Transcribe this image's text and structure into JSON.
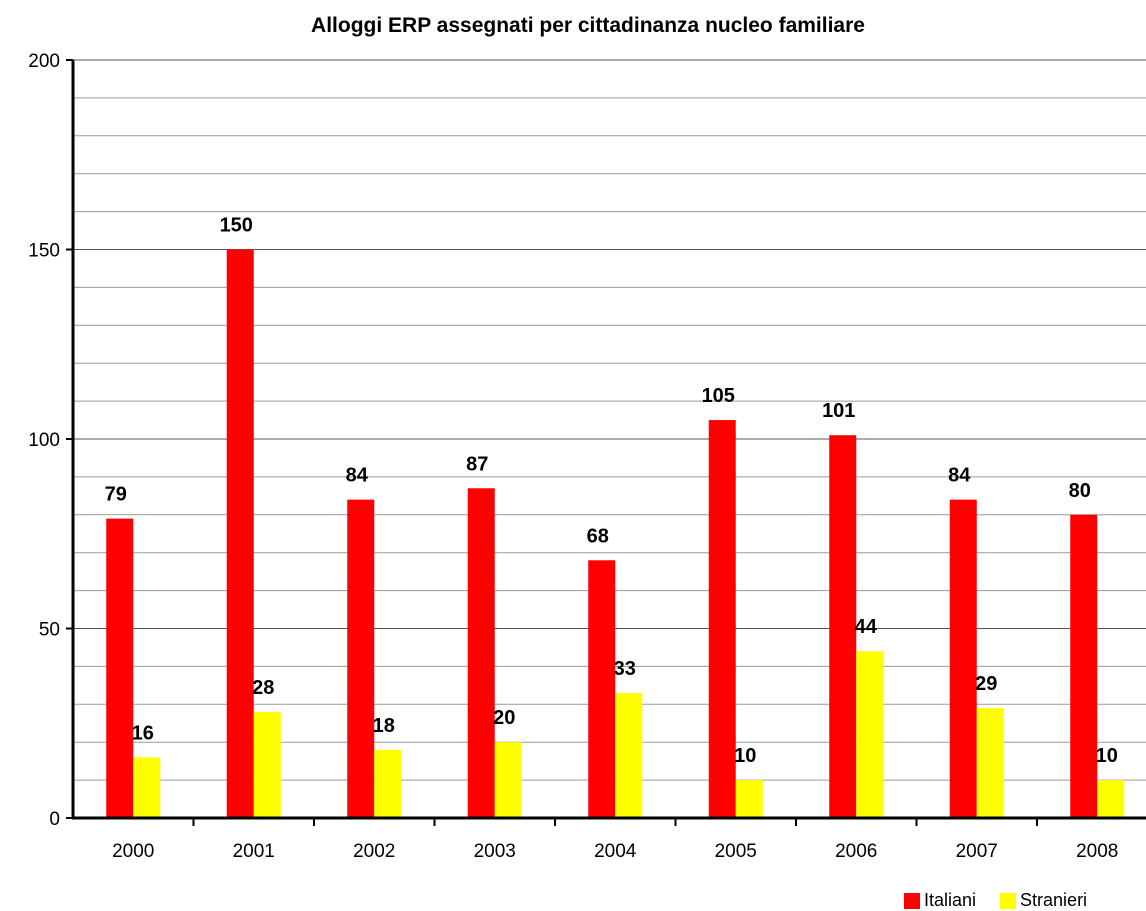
{
  "chart_data": {
    "type": "bar",
    "title": "Alloggi ERP assegnati per cittadinanza nucleo familiare",
    "xlabel": "",
    "ylabel": "",
    "ylim": [
      0,
      200
    ],
    "yticks": [
      0,
      50,
      100,
      150,
      200
    ],
    "grid": true,
    "legend_position": "bottom-right",
    "categories": [
      "2000",
      "2001",
      "2002",
      "2003",
      "2004",
      "2005",
      "2006",
      "2007",
      "2008"
    ],
    "series": [
      {
        "name": "Italiani",
        "color": "#ff0000",
        "values": [
          79,
          150,
          84,
          87,
          68,
          105,
          101,
          84,
          80
        ]
      },
      {
        "name": "Stranieri",
        "color": "#ffff00",
        "values": [
          16,
          28,
          18,
          20,
          33,
          10,
          44,
          29,
          10
        ]
      }
    ]
  }
}
